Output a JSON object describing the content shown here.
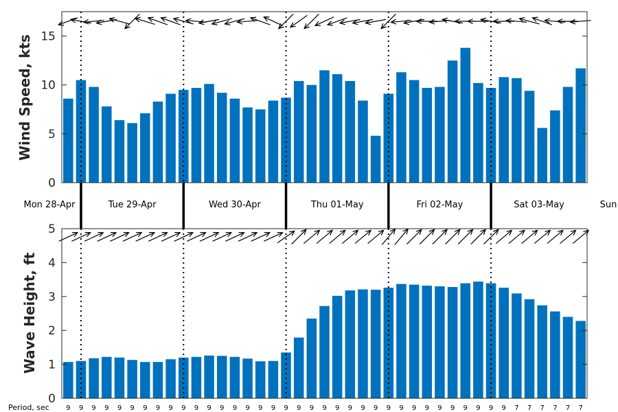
{
  "chart_data": [
    {
      "type": "bar",
      "ylabel": "Wind Speed, kts",
      "ylim": [
        0,
        17.5
      ],
      "yticks": [
        0,
        5,
        10,
        15
      ],
      "color": "#0072BD",
      "grid": false,
      "values": [
        8.6,
        10.5,
        9.8,
        7.8,
        6.4,
        6.1,
        7.1,
        8.3,
        9.1,
        9.5,
        9.7,
        10.1,
        9.2,
        8.6,
        7.7,
        7.5,
        8.4,
        8.7,
        10.4,
        10.0,
        11.5,
        11.1,
        10.4,
        8.4,
        4.8,
        9.1,
        11.3,
        10.5,
        9.7,
        9.8,
        12.5,
        13.8,
        10.2,
        9.7,
        10.8,
        10.7,
        9.4,
        5.6,
        7.4,
        9.8,
        11.7
      ],
      "wind_arrows_deg": [
        200,
        170,
        185,
        190,
        165,
        225,
        163,
        160,
        160,
        165,
        175,
        190,
        195,
        195,
        185,
        160,
        155,
        225,
        215,
        225,
        205,
        200,
        190,
        190,
        190,
        225,
        185,
        190,
        180,
        185,
        170,
        180,
        180,
        170,
        180,
        175,
        165,
        160,
        175,
        180,
        185
      ]
    },
    {
      "type": "bar",
      "ylabel": "Wave Height, ft",
      "ylim": [
        0,
        5
      ],
      "yticks": [
        0,
        1,
        2,
        3,
        4,
        5
      ],
      "color": "#0072BD",
      "grid": false,
      "values": [
        1.07,
        1.1,
        1.18,
        1.22,
        1.2,
        1.13,
        1.07,
        1.07,
        1.15,
        1.2,
        1.22,
        1.26,
        1.25,
        1.22,
        1.17,
        1.09,
        1.1,
        1.35,
        1.79,
        2.35,
        2.72,
        3.02,
        3.18,
        3.21,
        3.2,
        3.26,
        3.37,
        3.35,
        3.32,
        3.3,
        3.28,
        3.39,
        3.44,
        3.39,
        3.26,
        3.09,
        2.92,
        2.74,
        2.56,
        2.4,
        2.28
      ],
      "wave_arrows_deg": [
        25,
        25,
        25,
        25,
        25,
        25,
        25,
        25,
        25,
        25,
        25,
        25,
        25,
        25,
        25,
        25,
        25,
        35,
        45,
        40,
        40,
        40,
        40,
        40,
        40,
        50,
        50,
        45,
        45,
        45,
        45,
        45,
        45,
        45,
        40,
        40,
        40,
        40,
        40,
        40,
        40
      ]
    }
  ],
  "days": [
    "Mon 28-Apr",
    "Tue 29-Apr",
    "Wed 30-Apr",
    "Thu 01-May",
    "Fri 02-May",
    "Sat 03-May",
    "Sun"
  ],
  "period": {
    "label": "Period, sec",
    "values": [
      "9",
      "9",
      "9",
      "9",
      "9",
      "9",
      "9",
      "9",
      "9",
      "9",
      "9",
      "9",
      "9",
      "9",
      "9",
      "9",
      "9",
      "9",
      "9",
      "9",
      "9",
      "9",
      "9",
      "9",
      "9",
      "9",
      "9",
      "9",
      "9",
      "9",
      "9",
      "9",
      "9",
      "9",
      "9",
      "7",
      "7",
      "7",
      "7",
      "7",
      "7"
    ]
  }
}
